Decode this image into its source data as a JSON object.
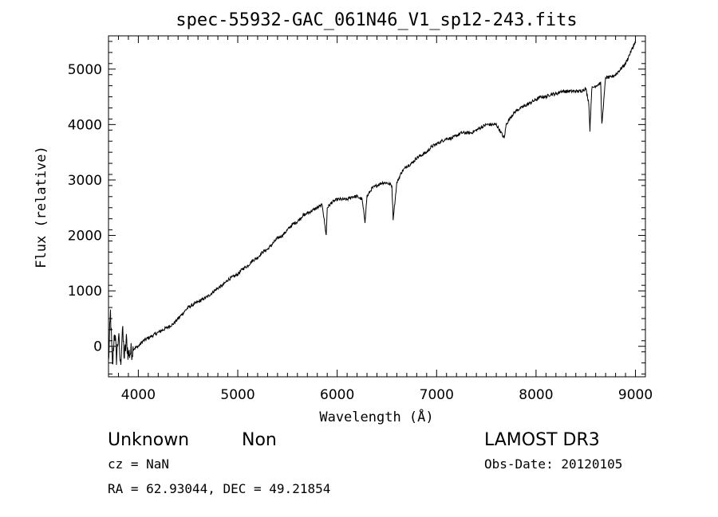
{
  "chart_data": {
    "type": "line",
    "title": "spec-55932-GAC_061N46_V1_sp12-243.fits",
    "xlabel": "Wavelength (Å)",
    "ylabel": "Flux (relative)",
    "xlim": [
      3700,
      9100
    ],
    "ylim": [
      -550,
      5600
    ],
    "xticks": [
      4000,
      5000,
      6000,
      7000,
      8000,
      9000
    ],
    "yticks": [
      0,
      1000,
      2000,
      3000,
      4000,
      5000
    ],
    "series": [
      {
        "x": [
          3700,
          3720,
          3740,
          3760,
          3780,
          3800,
          3820,
          3840,
          3860,
          3880,
          3900,
          3950,
          4000,
          4050,
          4100,
          4150,
          4200,
          4250,
          4300,
          4350,
          4400,
          4450,
          4500,
          4550,
          4600,
          4650,
          4700,
          4750,
          4800,
          4850,
          4900,
          4950,
          5000,
          5050,
          5100,
          5150,
          5200,
          5250,
          5300,
          5350,
          5400,
          5450,
          5500,
          5550,
          5600,
          5650,
          5700,
          5750,
          5800,
          5850,
          5890,
          5900,
          5950,
          6000,
          6050,
          6100,
          6150,
          6200,
          6250,
          6280,
          6300,
          6350,
          6400,
          6450,
          6500,
          6550,
          6563,
          6600,
          6650,
          6700,
          6750,
          6800,
          6850,
          6900,
          6950,
          7000,
          7050,
          7100,
          7150,
          7200,
          7250,
          7300,
          7350,
          7400,
          7450,
          7500,
          7550,
          7600,
          7650,
          7680,
          7700,
          7750,
          7800,
          7850,
          7900,
          7950,
          8000,
          8050,
          8100,
          8150,
          8200,
          8250,
          8300,
          8350,
          8400,
          8450,
          8500,
          8530,
          8542,
          8560,
          8600,
          8650,
          8662,
          8700,
          8750,
          8800,
          8850,
          8900,
          8950,
          9000
        ],
        "y": [
          -300,
          600,
          -400,
          300,
          -200,
          200,
          -350,
          300,
          -200,
          100,
          -150,
          -50,
          0,
          100,
          150,
          200,
          250,
          300,
          350,
          400,
          500,
          600,
          700,
          750,
          800,
          850,
          900,
          980,
          1050,
          1100,
          1200,
          1250,
          1300,
          1400,
          1450,
          1550,
          1600,
          1700,
          1750,
          1850,
          1950,
          2000,
          2100,
          2200,
          2250,
          2350,
          2400,
          2450,
          2500,
          2550,
          2000,
          2500,
          2600,
          2650,
          2650,
          2650,
          2700,
          2700,
          2650,
          2250,
          2700,
          2850,
          2900,
          2950,
          2950,
          2900,
          2300,
          2950,
          3150,
          3250,
          3300,
          3400,
          3450,
          3500,
          3600,
          3650,
          3700,
          3750,
          3750,
          3800,
          3850,
          3850,
          3850,
          3900,
          3950,
          4000,
          4000,
          4000,
          3850,
          3750,
          4000,
          4150,
          4250,
          4300,
          4350,
          4400,
          4450,
          4500,
          4500,
          4550,
          4550,
          4600,
          4600,
          4600,
          4600,
          4600,
          4650,
          4400,
          3900,
          4650,
          4700,
          4750,
          4000,
          4850,
          4850,
          4900,
          5000,
          5100,
          5300,
          5500
        ]
      }
    ]
  },
  "info": {
    "object_class": "Unknown",
    "subclass": "Non",
    "survey": "LAMOST DR3",
    "cz": "cz = NaN",
    "obs_date": "Obs-Date: 20120105",
    "radec": "RA =  62.93044, DEC =  49.21854"
  }
}
